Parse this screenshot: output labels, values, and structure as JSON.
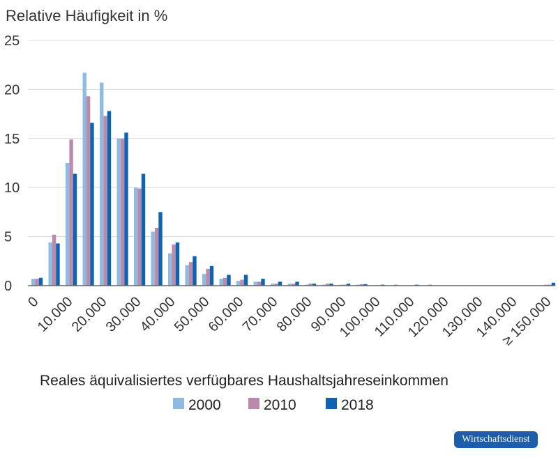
{
  "chart_data": {
    "type": "bar",
    "ylabel": "Relative Häufigkeit in %",
    "xlabel": "Reales äquivalisiertes verfügbares Haushaltsjahreseinkommen",
    "ylim": [
      0,
      25
    ],
    "yticks": [
      "0",
      "5",
      "10",
      "15",
      "20",
      "25"
    ],
    "xtick_labels": [
      "0",
      "10.000",
      "20.000",
      "30.000",
      "40.000",
      "50.000",
      "60.000",
      "70.000",
      "80.000",
      "90.000",
      "100.000",
      "110.000",
      "120.000",
      "130.000",
      "140.000",
      "≥ 150.000"
    ],
    "categories": [
      "0",
      "5.000",
      "10.000",
      "15.000",
      "20.000",
      "25.000",
      "30.000",
      "35.000",
      "40.000",
      "45.000",
      "50.000",
      "55.000",
      "60.000",
      "65.000",
      "70.000",
      "75.000",
      "80.000",
      "85.000",
      "90.000",
      "95.000",
      "100.000",
      "105.000",
      "110.000",
      "115.000",
      "120.000",
      "125.000",
      "130.000",
      "135.000",
      "140.000",
      "145.000",
      "≥ 150.000"
    ],
    "series": [
      {
        "name": "2000",
        "color": "#8fbbe0",
        "values": [
          0.7,
          4.4,
          12.5,
          21.7,
          20.7,
          15.0,
          10.0,
          5.5,
          3.3,
          2.1,
          1.2,
          0.7,
          0.5,
          0.4,
          0.2,
          0.2,
          0.1,
          0.1,
          0.1,
          0.1,
          0.05,
          0.0,
          0.0,
          0.0,
          0.0,
          0.0,
          0.0,
          0.0,
          0.0,
          0.0,
          0.1
        ]
      },
      {
        "name": "2010",
        "color": "#b98aa9",
        "values": [
          0.7,
          5.2,
          14.9,
          19.3,
          17.3,
          15.0,
          9.9,
          5.9,
          4.2,
          2.4,
          1.7,
          0.8,
          0.6,
          0.4,
          0.2,
          0.2,
          0.2,
          0.2,
          0.1,
          0.15,
          0.05,
          0.1,
          0.0,
          0.1,
          0.0,
          0.0,
          0.0,
          0.0,
          0.0,
          0.0,
          0.1
        ]
      },
      {
        "name": "2018",
        "color": "#0e64b0",
        "values": [
          0.8,
          4.3,
          11.4,
          16.6,
          17.8,
          15.6,
          11.4,
          7.5,
          4.4,
          3.0,
          2.0,
          1.1,
          1.1,
          0.7,
          0.4,
          0.4,
          0.2,
          0.2,
          0.2,
          0.15,
          0.1,
          0.0,
          0.1,
          0.0,
          0.0,
          0.0,
          0.0,
          0.0,
          0.0,
          0.0,
          0.3
        ]
      }
    ]
  },
  "branding": {
    "logo_text": "Wirtschaftsdienst"
  }
}
